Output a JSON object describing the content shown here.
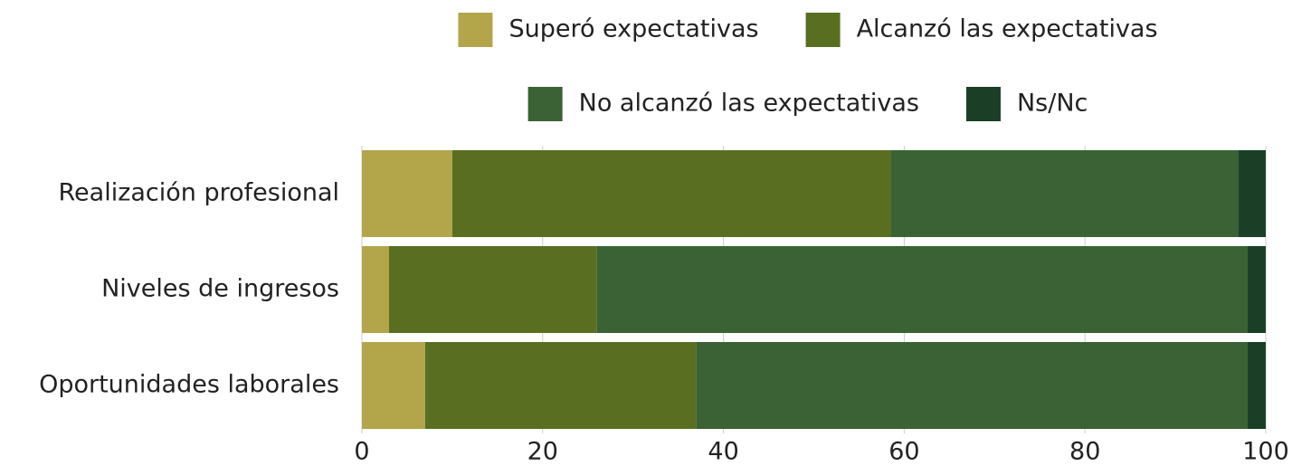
{
  "chart_data": {
    "type": "stacked-barh",
    "categories": [
      "Realización profesional",
      "Niveles de ingresos",
      "Oportunidades laborales"
    ],
    "series": [
      {
        "name": "Superó expectativas",
        "color": "#b3a54a",
        "values": [
          10,
          3,
          7
        ]
      },
      {
        "name": "Alcanzó las expectativas",
        "color": "#5a6e22",
        "values": [
          48.5,
          23,
          30
        ]
      },
      {
        "name": "No alcanzó las expectativas",
        "color": "#3a6235",
        "values": [
          38.5,
          72,
          61
        ]
      },
      {
        "name": "Ns/Nc",
        "color": "#1a3f26",
        "values": [
          3,
          2,
          2
        ]
      }
    ],
    "xlim": [
      0,
      100
    ],
    "xticks": [
      0,
      20,
      40,
      60,
      80,
      100
    ],
    "grid": true,
    "legend": "top"
  }
}
